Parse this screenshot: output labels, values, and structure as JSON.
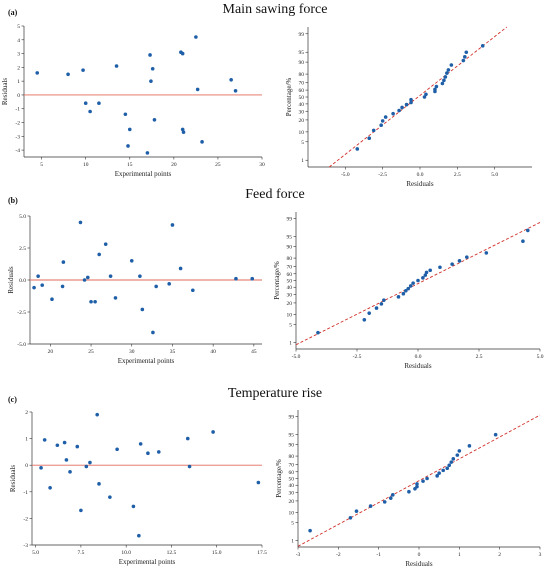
{
  "panels": [
    {
      "tag": "(a)",
      "title": "Main sawing force"
    },
    {
      "tag": "(b)",
      "title": "Feed force"
    },
    {
      "tag": "(c)",
      "title": "Temperature rise"
    }
  ],
  "colors": {
    "point": "#1f5fa8",
    "zero_line": "#e06a5a",
    "ref_line": "#d0302a",
    "axis": "#333333"
  },
  "chart_data": [
    {
      "type": "scatter",
      "panel": "(a)",
      "title": "Main sawing force",
      "xlabel": "Experimental points",
      "ylabel": "Residuals",
      "xlim": [
        3,
        30
      ],
      "ylim": [
        -4.5,
        5
      ],
      "xticks": [
        5,
        10,
        15,
        20,
        25,
        30
      ],
      "yticks": [
        5,
        4,
        3,
        2,
        1,
        0,
        -1,
        -2,
        -3,
        -4
      ],
      "ytick_labels": [
        "5",
        "4",
        "3",
        "2",
        "1",
        "0",
        "-1",
        "-2",
        "-3",
        "-4"
      ],
      "reference_line_y": 0,
      "x": [
        4.5,
        8,
        9.7,
        10,
        10.5,
        11.5,
        13.5,
        14.5,
        14.8,
        15,
        17,
        17.3,
        17.4,
        17.6,
        17.8,
        20.8,
        21,
        21.1,
        21,
        22.5,
        22.7,
        23.2,
        26.5,
        27
      ],
      "y": [
        1.6,
        1.5,
        1.8,
        -0.6,
        -1.2,
        -0.6,
        2.1,
        -1.4,
        -3.7,
        -2.5,
        -4.2,
        2.9,
        1.0,
        1.9,
        -1.8,
        3.1,
        -2.5,
        -2.7,
        3.0,
        4.2,
        0.4,
        -3.4,
        1.1,
        0.3
      ]
    },
    {
      "type": "scatter",
      "panel": "(a)",
      "title": "Main sawing force",
      "xlabel": "Residuals",
      "ylabel": "Percentage/%",
      "xlim": [
        -7.5,
        7.5
      ],
      "probability_scale": true,
      "xticks": [
        -5,
        -2.5,
        0,
        2.5,
        5
      ],
      "xtick_labels": [
        "-5.0",
        "-2.5",
        "0.0",
        "2.5",
        "5.0"
      ],
      "yticks": [
        1,
        5,
        10,
        20,
        30,
        40,
        50,
        60,
        70,
        80,
        90,
        95,
        99
      ],
      "reference_line": "dashed normal fit",
      "x": [
        -4.2,
        -3.4,
        -3.1,
        -2.6,
        -2.5,
        -2.3,
        -1.8,
        -1.4,
        -1.2,
        -0.9,
        -0.6,
        -0.6,
        0.3,
        0.4,
        1.0,
        1.0,
        1.1,
        1.5,
        1.6,
        1.7,
        1.8,
        1.9,
        2.1,
        2.9,
        3.0,
        3.1,
        4.2
      ],
      "y": [
        2.8,
        6.5,
        11,
        15,
        19,
        23,
        27,
        31,
        35,
        39,
        42,
        46,
        50,
        54,
        58,
        61,
        65,
        69,
        73,
        77,
        81,
        84,
        88,
        91,
        93,
        95,
        97
      ]
    },
    {
      "type": "scatter",
      "panel": "(b)",
      "title": "Feed force",
      "xlabel": "Experimental points",
      "ylabel": "Residuals",
      "xlim": [
        17.5,
        46
      ],
      "ylim": [
        -5,
        5
      ],
      "xticks": [
        20,
        25,
        30,
        35,
        40,
        45
      ],
      "yticks": [
        5,
        2.5,
        0,
        -2.5,
        -5
      ],
      "ytick_labels": [
        "5.0",
        "2.5",
        "0.0",
        "-2.5",
        "-5.0"
      ],
      "reference_line_y": 0,
      "x": [
        18,
        18.5,
        19,
        20.2,
        21.5,
        21.6,
        23.7,
        24.2,
        24.6,
        25,
        25.5,
        26,
        26.8,
        27.4,
        28,
        30,
        31,
        31.3,
        32.6,
        33,
        34.6,
        35,
        36,
        37.5,
        42.8,
        44.8
      ],
      "y": [
        -0.6,
        0.3,
        -0.4,
        -1.5,
        -0.5,
        1.4,
        4.5,
        0.0,
        0.2,
        -1.7,
        -1.7,
        2.0,
        2.8,
        0.3,
        -1.4,
        1.5,
        0.3,
        -2.3,
        -4.1,
        -0.5,
        -0.3,
        4.3,
        0.9,
        -0.8,
        0.1,
        0.1
      ]
    },
    {
      "type": "scatter",
      "panel": "(b)",
      "title": "Feed force",
      "xlabel": "Residuals",
      "ylabel": "Percentage/%",
      "xlim": [
        -5,
        5
      ],
      "probability_scale": true,
      "xticks": [
        -5,
        -2.5,
        0,
        2.5,
        5
      ],
      "xtick_labels": [
        "-5.0",
        "-2.5",
        "0.0",
        "2.5",
        "5.0"
      ],
      "yticks": [
        1,
        5,
        10,
        20,
        30,
        40,
        50,
        60,
        70,
        80,
        90,
        95,
        99
      ],
      "reference_line": "dashed normal fit",
      "x": [
        -4.1,
        -2.2,
        -2.0,
        -1.7,
        -1.5,
        -1.4,
        -0.8,
        -0.6,
        -0.5,
        -0.4,
        -0.3,
        -0.2,
        0.0,
        0.2,
        0.3,
        0.35,
        0.5,
        0.9,
        1.4,
        1.7,
        2.0,
        2.8,
        4.3,
        4.5
      ],
      "y": [
        2.5,
        7,
        11,
        15,
        19,
        23,
        27,
        31,
        35,
        38,
        42,
        46,
        50,
        54,
        58,
        62,
        65,
        69,
        73,
        77,
        81,
        85,
        93,
        97
      ]
    },
    {
      "type": "scatter",
      "panel": "(c)",
      "title": "Temperature rise",
      "xlabel": "Experimental points",
      "ylabel": "Residuals",
      "xlim": [
        4.8,
        17.5
      ],
      "ylim": [
        -3,
        2
      ],
      "xticks": [
        5,
        7.5,
        10,
        12.5,
        15,
        17.5
      ],
      "xtick_labels": [
        "5.0",
        "7.5",
        "10.0",
        "12.5",
        "15.0",
        "17.5"
      ],
      "yticks": [
        2,
        1,
        0,
        -1,
        -2,
        -3
      ],
      "ytick_labels": [
        "2",
        "1",
        "0",
        "-1",
        "-2",
        "-3"
      ],
      "reference_line_y": 0,
      "x": [
        5.3,
        5.5,
        5.8,
        6.2,
        6.6,
        6.7,
        6.9,
        7.3,
        7.5,
        7.8,
        8.0,
        8.4,
        8.5,
        9.1,
        9.5,
        10.4,
        10.7,
        10.8,
        11.2,
        11.8,
        13.4,
        13.5,
        14.8,
        17.3
      ],
      "y": [
        -0.1,
        0.95,
        -0.85,
        0.75,
        0.85,
        0.2,
        -0.25,
        0.7,
        -1.7,
        -0.05,
        0.1,
        1.9,
        -0.7,
        -1.2,
        0.6,
        -1.55,
        -2.65,
        0.8,
        0.45,
        0.5,
        1.0,
        -0.05,
        1.25,
        -0.65
      ]
    },
    {
      "type": "scatter",
      "panel": "(c)",
      "title": "Temperature rise",
      "xlabel": "Residuals",
      "ylabel": "Percentage/%",
      "xlim": [
        -3,
        3
      ],
      "probability_scale": true,
      "xticks": [
        -3,
        -2,
        -1,
        0,
        1,
        2,
        3
      ],
      "xtick_labels": [
        "-3",
        "-2",
        "-1",
        "0",
        "1",
        "2",
        "3"
      ],
      "yticks": [
        1,
        5,
        10,
        20,
        30,
        40,
        50,
        60,
        70,
        80,
        90,
        95,
        99
      ],
      "reference_line": "dashed normal fit",
      "x": [
        -2.7,
        -1.7,
        -1.55,
        -1.2,
        -0.85,
        -0.7,
        -0.65,
        -0.25,
        -0.1,
        -0.05,
        -0.05,
        0.1,
        0.2,
        0.45,
        0.5,
        0.6,
        0.7,
        0.75,
        0.8,
        0.85,
        0.95,
        1.0,
        1.25,
        1.9
      ],
      "y": [
        2.5,
        7,
        11,
        15,
        19,
        23,
        27,
        31,
        35,
        38,
        42,
        46,
        50,
        54,
        58,
        62,
        65,
        69,
        73,
        77,
        81,
        85,
        89,
        95
      ]
    }
  ]
}
